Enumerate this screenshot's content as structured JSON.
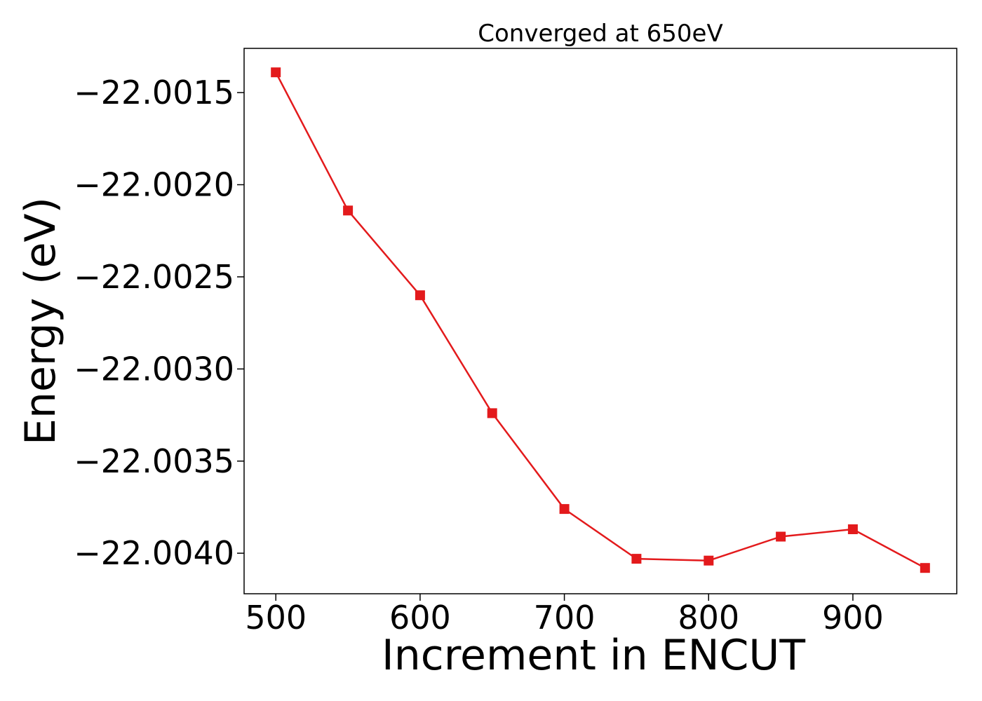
{
  "chart_data": {
    "type": "line",
    "title": "Converged at 650eV",
    "xlabel": "Increment in ENCUT",
    "ylabel": "Energy (eV)",
    "x": [
      500,
      550,
      600,
      650,
      700,
      750,
      800,
      850,
      900,
      950
    ],
    "series": [
      {
        "values": [
          -22.00139,
          -22.00214,
          -22.0026,
          -22.00324,
          -22.00376,
          -22.00403,
          -22.00404,
          -22.00391,
          -22.00387,
          -22.00408
        ],
        "color": "#e31a1c",
        "marker": "square"
      }
    ],
    "xlim": [
      478,
      972
    ],
    "ylim": [
      -22.00422,
      -22.00126
    ],
    "xticks": [
      500,
      600,
      700,
      800,
      900
    ],
    "xtick_labels": [
      "500",
      "600",
      "700",
      "800",
      "900"
    ],
    "yticks": [
      -22.0015,
      -22.002,
      -22.0025,
      -22.003,
      -22.0035,
      -22.004
    ],
    "ytick_labels": [
      "−22.0015",
      "−22.0020",
      "−22.0025",
      "−22.0030",
      "−22.0035",
      "−22.0040"
    ],
    "grid": false,
    "legend": "none"
  }
}
